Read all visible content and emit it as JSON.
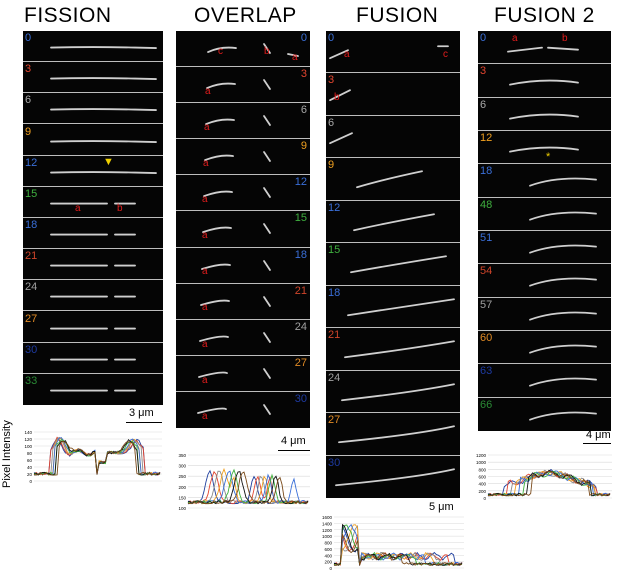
{
  "panels": [
    {
      "id": "fission",
      "title": "FISSION",
      "frames": [
        {
          "t": "0",
          "color": "#3a6fd8"
        },
        {
          "t": "3",
          "color": "#e2452f"
        },
        {
          "t": "6",
          "color": "#a8a8a8"
        },
        {
          "t": "9",
          "color": "#f0a020"
        },
        {
          "t": "12",
          "color": "#3a6fd8",
          "marker": "▼"
        },
        {
          "t": "15",
          "color": "#3fb03f",
          "labels": [
            "a",
            "b"
          ]
        },
        {
          "t": "18",
          "color": "#3a6fd8"
        },
        {
          "t": "21",
          "color": "#d0452a"
        },
        {
          "t": "24",
          "color": "#a0a0a0"
        },
        {
          "t": "27",
          "color": "#e08a25"
        },
        {
          "t": "30",
          "color": "#1e3aa0"
        },
        {
          "t": "33",
          "color": "#2a8a35"
        }
      ],
      "scale": "3 μm",
      "graph": {
        "yticks": [
          "140",
          "120",
          "100",
          "80",
          "60",
          "40",
          "20",
          "0"
        ]
      }
    },
    {
      "id": "overlap",
      "title": "OVERLAP",
      "frames": [
        {
          "t": "0",
          "color": "#3a6fd8",
          "labels": [
            "c",
            "b",
            "a"
          ]
        },
        {
          "t": "3",
          "color": "#e2452f",
          "labels": [
            "a"
          ]
        },
        {
          "t": "6",
          "color": "#a8a8a8",
          "labels": [
            "a"
          ]
        },
        {
          "t": "9",
          "color": "#f0a020",
          "labels": [
            "a"
          ]
        },
        {
          "t": "12",
          "color": "#3a6fd8",
          "labels": [
            "a"
          ]
        },
        {
          "t": "15",
          "color": "#3fb03f",
          "labels": [
            "a"
          ]
        },
        {
          "t": "18",
          "color": "#3a6fd8",
          "labels": [
            "a"
          ]
        },
        {
          "t": "21",
          "color": "#d0452a",
          "labels": [
            "a"
          ]
        },
        {
          "t": "24",
          "color": "#a0a0a0",
          "labels": [
            "a"
          ]
        },
        {
          "t": "27",
          "color": "#e08a25",
          "labels": [
            "a"
          ]
        },
        {
          "t": "30",
          "color": "#1e3aa0",
          "labels": [
            "a"
          ]
        }
      ],
      "scale": "4 μm",
      "graph": {
        "yticks": [
          "350",
          "300",
          "250",
          "200",
          "150",
          "100"
        ]
      }
    },
    {
      "id": "fusion",
      "title": "FUSION",
      "frames": [
        {
          "t": "0",
          "color": "#3a6fd8",
          "labels": [
            "a",
            "c"
          ]
        },
        {
          "t": "3",
          "color": "#e2452f",
          "labels": [
            "b"
          ]
        },
        {
          "t": "6",
          "color": "#a8a8a8"
        },
        {
          "t": "9",
          "color": "#f0a020"
        },
        {
          "t": "12",
          "color": "#3a6fd8"
        },
        {
          "t": "15",
          "color": "#3fb03f"
        },
        {
          "t": "18",
          "color": "#3a6fd8"
        },
        {
          "t": "21",
          "color": "#d0452a"
        },
        {
          "t": "24",
          "color": "#a0a0a0"
        },
        {
          "t": "27",
          "color": "#e08a25"
        },
        {
          "t": "30",
          "color": "#1e3aa0"
        }
      ],
      "scale": "5 μm",
      "graph": {
        "yticks": [
          "1600",
          "1400",
          "1200",
          "1000",
          "800",
          "600",
          "400",
          "200",
          "0"
        ]
      }
    },
    {
      "id": "fusion2",
      "title": "FUSION 2",
      "frames": [
        {
          "t": "0",
          "color": "#3a6fd8",
          "labels": [
            "a",
            "b"
          ]
        },
        {
          "t": "3",
          "color": "#e2452f"
        },
        {
          "t": "6",
          "color": "#a8a8a8"
        },
        {
          "t": "12",
          "color": "#f0a020",
          "marker": "*"
        },
        {
          "t": "18",
          "color": "#3a6fd8"
        },
        {
          "t": "48",
          "color": "#3fb03f"
        },
        {
          "t": "51",
          "color": "#3a6fd8"
        },
        {
          "t": "54",
          "color": "#d0452a"
        },
        {
          "t": "57",
          "color": "#a0a0a0"
        },
        {
          "t": "60",
          "color": "#e08a25"
        },
        {
          "t": "63",
          "color": "#1e3aa0"
        },
        {
          "t": "66",
          "color": "#2a8a35"
        }
      ],
      "scale": "4 μm",
      "graph": {
        "yticks": [
          "1200",
          "1000",
          "800",
          "600",
          "400",
          "200",
          "0"
        ]
      }
    }
  ],
  "y_axis_label": "Pixel Intensity",
  "trace_colors": [
    "#1f3f9e",
    "#e2452f",
    "#8a8a8a",
    "#f0a020",
    "#3a6fd8",
    "#3fb03f",
    "#111111",
    "#7a4a1a"
  ]
}
